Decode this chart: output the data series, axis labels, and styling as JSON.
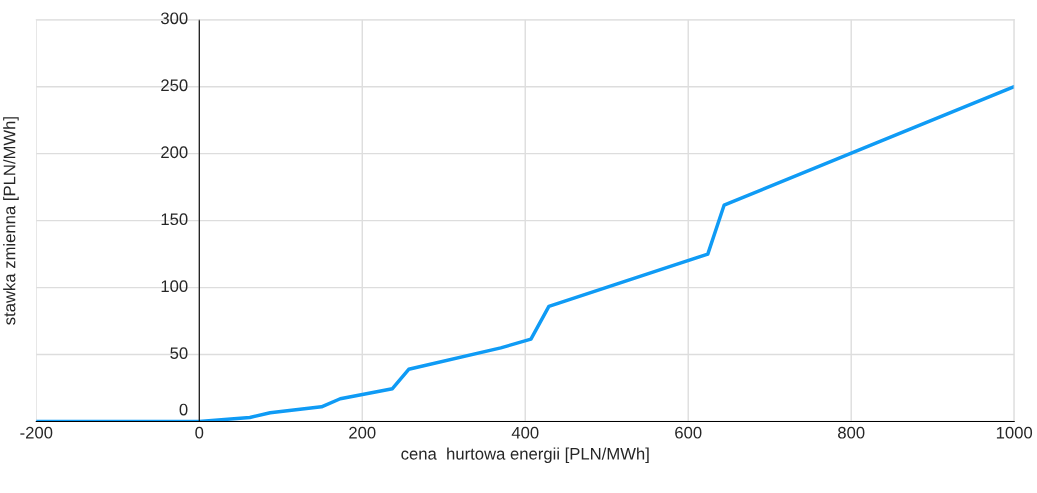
{
  "chart_data": {
    "type": "line",
    "xlabel": "cena  hurtowa energii [PLN/MWh]",
    "ylabel": "stawka zmienna [PLN/MWh]",
    "x": [
      -200,
      0,
      62,
      87,
      150,
      173,
      237,
      257,
      370,
      407,
      429,
      579,
      624,
      644,
      879,
      1000
    ],
    "series": [
      {
        "color": "#0f9bf5",
        "values": [
          0,
          0,
          3,
          6.5,
          11,
          17,
          24.5,
          39,
          55,
          61.5,
          86,
          116,
          125,
          161.5,
          220,
          250
        ]
      }
    ],
    "xlim": [
      -200,
      1000
    ],
    "ylim": [
      0,
      300
    ],
    "xticks": [
      -200,
      0,
      200,
      400,
      600,
      800,
      1000
    ],
    "yticks": [
      0,
      50,
      100,
      150,
      200,
      250,
      300
    ],
    "grid": true,
    "marker": "none",
    "line_style": "solid"
  }
}
